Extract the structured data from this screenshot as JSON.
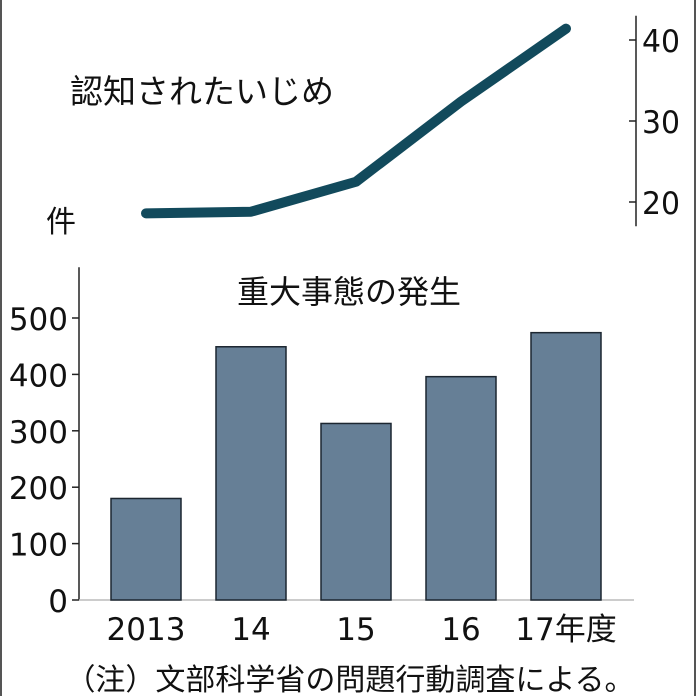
{
  "chart_data": [
    {
      "type": "line",
      "title": "認知されたいじめ",
      "categories": [
        "2013",
        "14",
        "15",
        "16",
        "17年度"
      ],
      "values": [
        18.6,
        18.8,
        22.5,
        32.4,
        41.4
      ],
      "y_axis_position": "right",
      "yticks": [
        20,
        30,
        40
      ],
      "ylim": [
        17,
        43
      ],
      "color": "#124a5c"
    },
    {
      "type": "bar",
      "title": "重大事態の発生",
      "ylabel": "件",
      "categories": [
        "2013",
        "14",
        "15",
        "16",
        "17年度"
      ],
      "values": [
        180,
        449,
        313,
        396,
        474
      ],
      "yticks": [
        0,
        100,
        200,
        300,
        400,
        500
      ],
      "ylim": [
        0,
        590
      ],
      "color": "#667f96"
    }
  ],
  "note": "（注）文部科学省の問題行動調査による。"
}
